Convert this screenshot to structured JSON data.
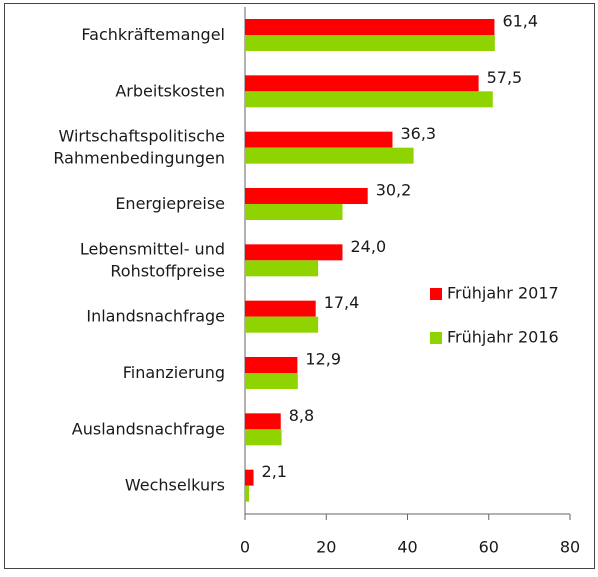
{
  "chart_data": {
    "type": "barh",
    "categories": [
      "Fachkräftemangel",
      "Arbeitskosten",
      "Wirtschaftspolitische\nRahmenbedingungen",
      "Energiepreise",
      "Lebensmittel- und\nRohstoffpreise",
      "Inlandsnachfrage",
      "Finanzierung",
      "Auslandsnachfrage",
      "Wechselkurs"
    ],
    "series": [
      {
        "name": "Frühjahr 2017",
        "color": "#ff0000",
        "values": [
          61.4,
          57.5,
          36.3,
          30.2,
          24.0,
          17.4,
          12.9,
          8.8,
          2.1
        ],
        "value_labels": [
          "61,4",
          "57,5",
          "36,3",
          "30,2",
          "24,0",
          "17,4",
          "12,9",
          "8,8",
          "2,1"
        ]
      },
      {
        "name": "Frühjahr 2016",
        "color": "#8fd400",
        "values": [
          61.5,
          61,
          41.5,
          24,
          18,
          18,
          13,
          9,
          1
        ]
      }
    ],
    "xlim": [
      0,
      80
    ],
    "xticks": [
      0,
      20,
      40,
      60,
      80
    ],
    "legend": "right"
  }
}
